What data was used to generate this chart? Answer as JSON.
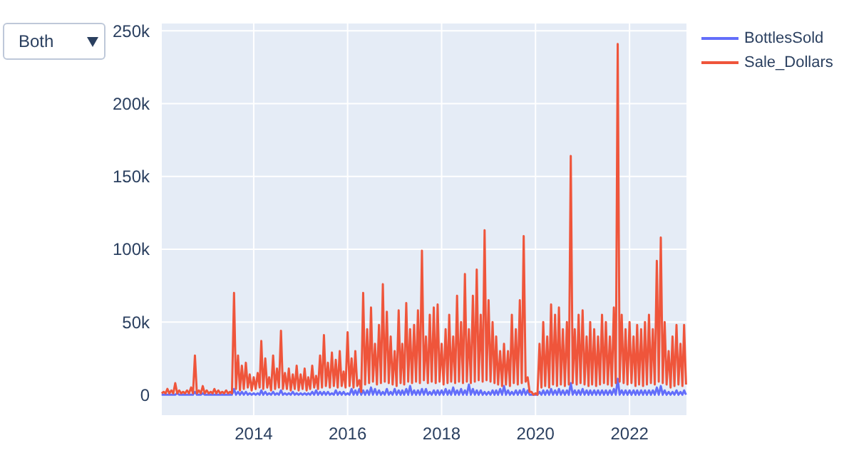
{
  "chart_data": {
    "type": "line",
    "annotations": [
      "Both"
    ],
    "x": [
      "2012-01-16",
      "2012-02-01",
      "2012-02-16",
      "2012-03-01",
      "2012-03-16",
      "2012-04-01",
      "2012-04-16",
      "2012-05-01",
      "2012-05-16",
      "2012-06-01",
      "2012-06-16",
      "2012-07-01",
      "2012-07-16",
      "2012-08-01",
      "2012-08-16",
      "2012-09-01",
      "2012-09-16",
      "2012-10-01",
      "2012-10-16",
      "2012-11-01",
      "2012-11-16",
      "2012-12-01",
      "2012-12-16",
      "2013-01-01",
      "2013-01-16",
      "2013-02-01",
      "2013-02-16",
      "2013-03-01",
      "2013-03-16",
      "2013-04-01",
      "2013-04-16",
      "2013-05-01",
      "2013-05-16",
      "2013-06-01",
      "2013-06-16",
      "2013-07-01",
      "2013-07-16",
      "2013-08-01",
      "2013-08-16",
      "2013-09-01",
      "2013-09-16",
      "2013-10-01",
      "2013-10-16",
      "2013-11-01",
      "2013-11-16",
      "2013-12-01",
      "2013-12-16",
      "2014-01-01",
      "2014-01-16",
      "2014-02-01",
      "2014-02-16",
      "2014-03-01",
      "2014-03-16",
      "2014-04-01",
      "2014-04-16",
      "2014-05-01",
      "2014-05-16",
      "2014-06-01",
      "2014-06-16",
      "2014-07-01",
      "2014-07-16",
      "2014-08-01",
      "2014-08-16",
      "2014-09-01",
      "2014-09-16",
      "2014-10-01",
      "2014-10-16",
      "2014-11-01",
      "2014-11-16",
      "2014-12-01",
      "2014-12-16",
      "2015-01-01",
      "2015-01-16",
      "2015-02-01",
      "2015-02-16",
      "2015-03-01",
      "2015-03-16",
      "2015-04-01",
      "2015-04-16",
      "2015-05-01",
      "2015-05-16",
      "2015-06-01",
      "2015-06-16",
      "2015-07-01",
      "2015-07-16",
      "2015-08-01",
      "2015-08-16",
      "2015-09-01",
      "2015-09-16",
      "2015-10-01",
      "2015-10-16",
      "2015-11-01",
      "2015-11-16",
      "2015-12-01",
      "2015-12-16",
      "2016-01-01",
      "2016-01-16",
      "2016-02-01",
      "2016-02-16",
      "2016-03-01",
      "2016-03-16",
      "2016-04-01",
      "2016-04-16",
      "2016-05-01",
      "2016-05-16",
      "2016-06-01",
      "2016-06-16",
      "2016-07-01",
      "2016-07-16",
      "2016-08-01",
      "2016-08-16",
      "2016-09-01",
      "2016-09-16",
      "2016-10-01",
      "2016-10-16",
      "2016-11-01",
      "2016-11-16",
      "2016-12-01",
      "2016-12-16",
      "2017-01-01",
      "2017-01-16",
      "2017-02-01",
      "2017-02-16",
      "2017-03-01",
      "2017-03-16",
      "2017-04-01",
      "2017-04-16",
      "2017-05-01",
      "2017-05-16",
      "2017-06-01",
      "2017-06-16",
      "2017-07-01",
      "2017-07-16",
      "2017-08-01",
      "2017-08-16",
      "2017-09-01",
      "2017-09-16",
      "2017-10-01",
      "2017-10-16",
      "2017-11-01",
      "2017-11-16",
      "2017-12-01",
      "2017-12-16",
      "2018-01-01",
      "2018-01-16",
      "2018-02-01",
      "2018-02-16",
      "2018-03-01",
      "2018-03-16",
      "2018-04-01",
      "2018-04-16",
      "2018-05-01",
      "2018-05-16",
      "2018-06-01",
      "2018-06-16",
      "2018-07-01",
      "2018-07-16",
      "2018-08-01",
      "2018-08-16",
      "2018-09-01",
      "2018-09-16",
      "2018-10-01",
      "2018-10-16",
      "2018-11-01",
      "2018-11-16",
      "2018-12-01",
      "2018-12-16",
      "2019-01-01",
      "2019-01-16",
      "2019-02-01",
      "2019-02-16",
      "2019-03-01",
      "2019-03-16",
      "2019-04-01",
      "2019-04-16",
      "2019-05-01",
      "2019-05-16",
      "2019-06-01",
      "2019-06-16",
      "2019-07-01",
      "2019-07-16",
      "2019-08-01",
      "2019-08-16",
      "2019-09-01",
      "2019-09-16",
      "2019-10-01",
      "2019-10-16",
      "2019-11-01",
      "2019-11-16",
      "2019-12-01",
      "2019-12-16",
      "2020-01-01",
      "2020-01-16",
      "2020-02-01",
      "2020-02-16",
      "2020-03-01",
      "2020-03-16",
      "2020-04-01",
      "2020-04-16",
      "2020-05-01",
      "2020-05-16",
      "2020-06-01",
      "2020-06-16",
      "2020-07-01",
      "2020-07-16",
      "2020-08-01",
      "2020-08-16",
      "2020-09-01",
      "2020-09-16",
      "2020-10-01",
      "2020-10-16",
      "2020-11-01",
      "2020-11-16",
      "2020-12-01",
      "2020-12-16",
      "2021-01-01",
      "2021-01-16",
      "2021-02-01",
      "2021-02-16",
      "2021-03-01",
      "2021-03-16",
      "2021-04-01",
      "2021-04-16",
      "2021-05-01",
      "2021-05-16",
      "2021-06-01",
      "2021-06-16",
      "2021-07-01",
      "2021-07-16",
      "2021-08-01",
      "2021-08-16",
      "2021-09-01",
      "2021-09-16",
      "2021-10-01",
      "2021-10-16",
      "2021-11-01",
      "2021-11-16",
      "2021-12-01",
      "2021-12-16",
      "2022-01-01",
      "2022-01-16",
      "2022-02-01",
      "2022-02-16",
      "2022-03-01",
      "2022-03-16",
      "2022-04-01",
      "2022-04-16",
      "2022-05-01",
      "2022-05-16",
      "2022-06-01",
      "2022-06-16",
      "2022-07-01",
      "2022-07-16",
      "2022-08-01",
      "2022-08-16",
      "2022-09-01",
      "2022-09-16",
      "2022-10-01",
      "2022-10-16",
      "2022-11-01",
      "2022-11-16",
      "2022-12-01",
      "2022-12-16",
      "2023-01-01",
      "2023-01-16",
      "2023-02-01",
      "2023-02-16",
      "2023-03-01",
      "2023-03-16"
    ],
    "series": [
      {
        "name": "BottlesSold",
        "color": "#636efa",
        "values": [
          0,
          0,
          0,
          0,
          0,
          0,
          0,
          0,
          1000,
          0,
          0,
          0,
          0,
          0,
          0,
          0,
          0,
          2000,
          0,
          0,
          0,
          1000,
          0,
          0,
          0,
          0,
          0,
          0,
          0,
          0,
          0,
          0,
          0,
          0,
          0,
          0,
          0,
          4000,
          0,
          2000,
          0,
          2000,
          0,
          2000,
          0,
          1000,
          0,
          1000,
          0,
          1000,
          0,
          3000,
          0,
          2000,
          0,
          1000,
          0,
          2000,
          0,
          1000,
          0,
          3000,
          0,
          1000,
          0,
          1000,
          0,
          2000,
          0,
          1000,
          0,
          1000,
          0,
          1000,
          0,
          1000,
          0,
          2000,
          0,
          3000,
          0,
          2000,
          0,
          2000,
          0,
          2000,
          0,
          1000,
          0,
          3000,
          0,
          2000,
          0,
          2000,
          0,
          1000,
          0,
          4000,
          0,
          3000,
          0,
          4000,
          0,
          3000,
          0,
          3000,
          0,
          5000,
          0,
          4000,
          0,
          3000,
          0,
          2000,
          0,
          4000,
          0,
          2000,
          0,
          4000,
          0,
          3000,
          0,
          3000,
          0,
          4000,
          0,
          6000,
          0,
          3000,
          0,
          3000,
          0,
          4000,
          0,
          4000,
          0,
          2000,
          0,
          3000,
          0,
          3000,
          0,
          3000,
          0,
          4000,
          0,
          3000,
          0,
          5000,
          0,
          3000,
          0,
          4000,
          0,
          3000,
          0,
          7000,
          0,
          4000,
          0,
          3000,
          0,
          3000,
          0,
          2000,
          0,
          2000,
          0,
          3000,
          0,
          3000,
          0,
          4000,
          0,
          6000,
          0,
          3000,
          0,
          2000,
          0,
          3000,
          0,
          3000,
          0,
          4000,
          0,
          3000,
          0,
          0,
          0,
          0,
          0,
          2000,
          0,
          3000,
          0,
          3000,
          0,
          4000,
          0,
          3000,
          0,
          4000,
          0,
          3000,
          0,
          3000,
          0,
          8000,
          0,
          3000,
          0,
          3000,
          0,
          4000,
          0,
          3000,
          0,
          3000,
          0,
          3000,
          0,
          3000,
          0,
          3000,
          0,
          3000,
          0,
          3000,
          0,
          4000,
          0,
          11000,
          0,
          3000,
          0,
          3000,
          0,
          3000,
          0,
          3000,
          0,
          3000,
          0,
          3000,
          0,
          3000,
          0,
          3000,
          0,
          3000,
          0,
          5000,
          0,
          6000,
          0,
          3000,
          0,
          2000,
          0,
          2000,
          0,
          3000,
          0,
          2000,
          0,
          3000,
          0
        ]
      },
      {
        "name": "Sale_Dollars",
        "color": "#ef553b",
        "values": [
          1000,
          2000,
          1000,
          4000,
          1000,
          3000,
          1000,
          8000,
          1000,
          3000,
          1000,
          2000,
          1000,
          3000,
          1000,
          5000,
          1000,
          27000,
          1000,
          3000,
          1000,
          6000,
          1000,
          3000,
          1000,
          2000,
          1000,
          4000,
          1000,
          3000,
          1000,
          2000,
          1000,
          3000,
          1000,
          2000,
          1000,
          70000,
          4000,
          27000,
          3000,
          20000,
          4000,
          22000,
          5000,
          14000,
          3000,
          12000,
          4000,
          15000,
          5000,
          37000,
          4000,
          25000,
          5000,
          12000,
          3000,
          27000,
          4000,
          18000,
          5000,
          44000,
          4000,
          15000,
          4000,
          18000,
          3000,
          14000,
          4000,
          20000,
          3000,
          14000,
          4000,
          18000,
          3000,
          12000,
          4000,
          20000,
          5000,
          13000,
          4000,
          27000,
          5000,
          41000,
          6000,
          22000,
          5000,
          29000,
          6000,
          24000,
          5000,
          30000,
          6000,
          16000,
          5000,
          43000,
          6000,
          25000,
          5000,
          30000,
          6000,
          10000,
          2000,
          70000,
          7000,
          45000,
          8000,
          60000,
          9000,
          35000,
          7000,
          48000,
          8000,
          76000,
          9000,
          57000,
          8000,
          40000,
          7000,
          30000,
          6000,
          58000,
          8000,
          35000,
          7000,
          63000,
          9000,
          45000,
          8000,
          48000,
          9000,
          58000,
          8000,
          99000,
          10000,
          40000,
          8000,
          55000,
          9000,
          60000,
          8000,
          62000,
          9000,
          35000,
          7000,
          45000,
          8000,
          55000,
          9000,
          40000,
          8000,
          68000,
          9000,
          50000,
          8000,
          83000,
          9000,
          45000,
          8000,
          68000,
          9000,
          86000,
          10000,
          55000,
          9000,
          113000,
          10000,
          65000,
          9000,
          50000,
          8000,
          40000,
          7000,
          30000,
          6000,
          35000,
          7000,
          30000,
          6000,
          55000,
          8000,
          45000,
          7000,
          65000,
          8000,
          109000,
          9000,
          12000,
          2000,
          2000,
          0,
          1000,
          0,
          35000,
          5000,
          50000,
          6000,
          40000,
          5000,
          62000,
          7000,
          55000,
          6000,
          60000,
          7000,
          45000,
          6000,
          50000,
          7000,
          164000,
          8000,
          45000,
          7000,
          55000,
          8000,
          58000,
          7000,
          40000,
          6000,
          50000,
          7000,
          45000,
          6000,
          40000,
          7000,
          55000,
          8000,
          50000,
          7000,
          40000,
          6000,
          60000,
          8000,
          241000,
          9000,
          55000,
          8000,
          45000,
          7000,
          50000,
          8000,
          40000,
          6000,
          48000,
          7000,
          45000,
          6000,
          50000,
          7000,
          55000,
          8000,
          45000,
          7000,
          92000,
          9000,
          108000,
          8000,
          50000,
          7000,
          30000,
          5000,
          40000,
          6000,
          48000,
          7000,
          35000,
          6000,
          48000,
          7000
        ]
      }
    ],
    "xlim": [
      "2012-01-12",
      "2023-03-25"
    ],
    "xticks": [
      "2014",
      "2016",
      "2018",
      "2020",
      "2022"
    ],
    "ylim": [
      -14500,
      255500
    ],
    "yticks": [
      0,
      {
        "value": 50000,
        "label": "50k"
      },
      {
        "value": 100000,
        "label": "100k"
      },
      {
        "value": 150000,
        "label": "150k"
      },
      {
        "value": 200000,
        "label": "200k"
      },
      {
        "value": 250000,
        "label": "250k"
      }
    ],
    "grid": true,
    "legend": "top right",
    "marker": "none",
    "line_style": "solid"
  }
}
